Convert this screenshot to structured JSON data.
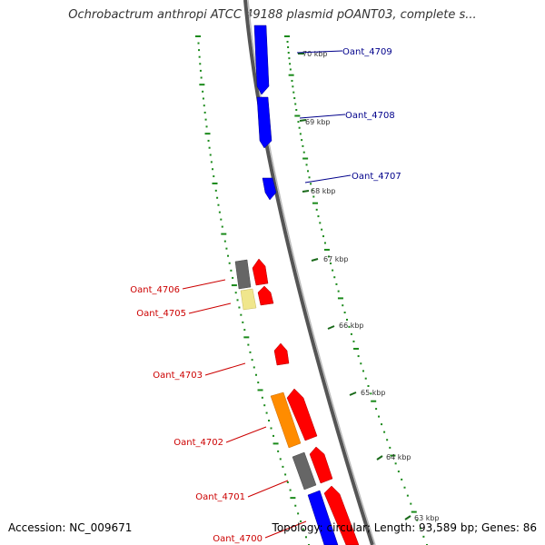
{
  "title": "Ochrobactrum anthropi ATCC 49188 plasmid pOANT03, complete s...",
  "footer": {
    "accession": "Accession: NC_009671",
    "summary": "Topology: circular; Length: 93,589 bp; Genes: 86"
  },
  "ticks": [
    "70 kbp",
    "69 kbp",
    "68 kbp",
    "67 kbp",
    "66 kbp",
    "65 kbp",
    "64 kbp",
    "63 kbp"
  ],
  "genes_forward": [
    {
      "label": "Oant_4709",
      "color": "#0000ff",
      "label_color": "#00008b"
    },
    {
      "label": "Oant_4708",
      "color": "#0000ff",
      "label_color": "#00008b"
    },
    {
      "label": "Oant_4707",
      "color": "#0000ff",
      "label_color": "#00008b"
    }
  ],
  "genes_reverse": [
    {
      "label": "Oant_4706",
      "color": "#ff0000",
      "label_color": "#cc0000"
    },
    {
      "label": "Oant_4705",
      "color": "#ff0000",
      "label_color": "#cc0000"
    },
    {
      "label": "Oant_4703",
      "color": "#ff0000",
      "label_color": "#cc0000"
    },
    {
      "label": "Oant_4702",
      "color": "#ff0000",
      "label_color": "#cc0000"
    },
    {
      "label": "Oant_4701",
      "color": "#ff0000",
      "label_color": "#cc0000"
    },
    {
      "label": "Oant_4700",
      "color": "#ff0000",
      "label_color": "#cc0000"
    }
  ],
  "colors": {
    "backbone": "#808080",
    "gc_dots": "#1a8a1a",
    "cds_forward": "#0000ff",
    "cds_reverse": "#ff0000",
    "feature_gray": "#666666",
    "feature_yellow": "#f0e68c",
    "feature_orange": "#ff8c00",
    "feature_blue": "#0000ff"
  }
}
